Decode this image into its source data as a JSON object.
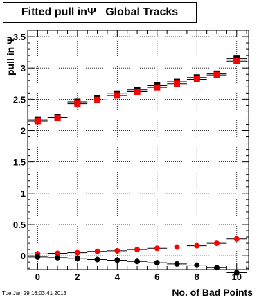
{
  "chart_data": {
    "type": "scatter",
    "title": "Fitted pull inΨ   Global Tracks",
    "xlabel": "No. of Bad Points",
    "ylabel": "pull in Ψ",
    "xlim": [
      -0.5,
      10.6
    ],
    "ylim": [
      -0.22,
      3.6
    ],
    "grid": true,
    "x_ticks": [
      0,
      2,
      4,
      6,
      8,
      10
    ],
    "y_ticks": [
      0,
      0.5,
      1,
      1.5,
      2,
      2.5,
      3,
      3.5
    ],
    "x_tick_labels": [
      "0",
      "2",
      "4",
      "6",
      "8",
      "10"
    ],
    "y_tick_labels": [
      "0",
      "0.5",
      "1",
      "1.5",
      "2",
      "2.5",
      "3",
      "3.5"
    ],
    "series": [
      {
        "marker": "square",
        "color": "#000000",
        "x": [
          0,
          1,
          2,
          3,
          4,
          5,
          6,
          7,
          8,
          9,
          10
        ],
        "y": [
          2.17,
          2.21,
          2.46,
          2.52,
          2.59,
          2.65,
          2.72,
          2.78,
          2.85,
          2.91,
          3.15
        ]
      },
      {
        "marker": "square",
        "color": "#ff0000",
        "x": [
          0,
          1,
          2,
          3,
          4,
          5,
          6,
          7,
          8,
          9,
          10
        ],
        "y": [
          2.15,
          2.2,
          2.43,
          2.49,
          2.56,
          2.62,
          2.69,
          2.75,
          2.82,
          2.89,
          3.11
        ]
      },
      {
        "marker": "circle",
        "color": "#ff0000",
        "x": [
          0,
          1,
          2,
          3,
          4,
          5,
          6,
          7,
          8,
          9,
          10
        ],
        "y": [
          0.03,
          0.04,
          0.05,
          0.07,
          0.08,
          0.1,
          0.12,
          0.14,
          0.16,
          0.2,
          0.27
        ]
      },
      {
        "marker": "circle",
        "color": "#000000",
        "x": [
          0,
          1,
          2,
          3,
          4,
          5,
          6,
          7,
          8,
          9,
          10
        ],
        "y": [
          -0.02,
          -0.03,
          -0.04,
          -0.06,
          -0.07,
          -0.09,
          -0.11,
          -0.13,
          -0.15,
          -0.19,
          -0.27
        ]
      }
    ]
  },
  "timestamp": "Tue Jan 29 16:03:41 2013"
}
